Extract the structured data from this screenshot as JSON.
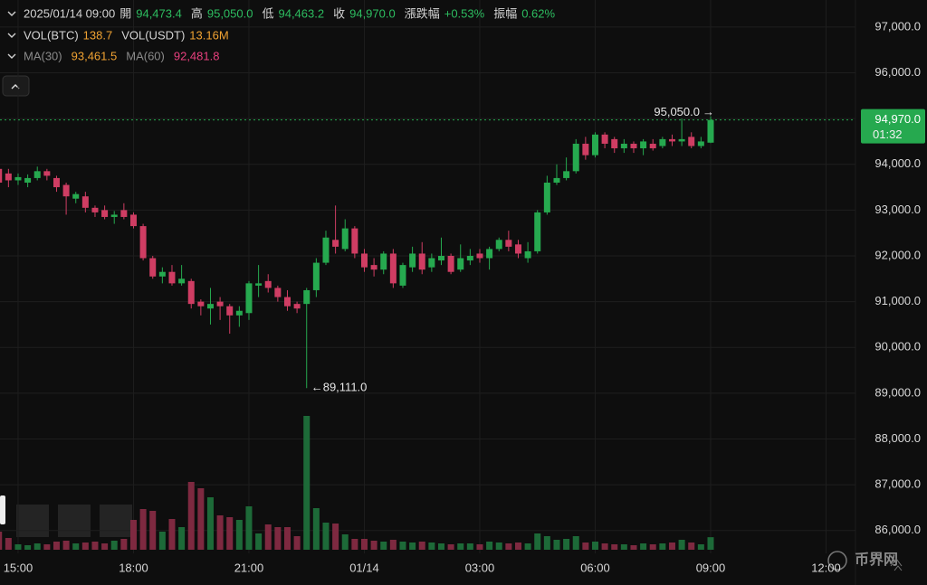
{
  "header": {
    "rows": [
      [
        {
          "text": "2025/01/14 09:00"
        },
        {
          "text": "開"
        },
        {
          "text": "94,473.4",
          "color": "#2dbd60"
        },
        {
          "text": "高"
        },
        {
          "text": "95,050.0",
          "color": "#2dbd60"
        },
        {
          "text": "低"
        },
        {
          "text": "94,463.2",
          "color": "#2dbd60"
        },
        {
          "text": "收"
        },
        {
          "text": "94,970.0",
          "color": "#2dbd60"
        },
        {
          "text": "漲跌幅"
        },
        {
          "text": "+0.53%",
          "color": "#2dbd60"
        },
        {
          "text": "振幅"
        },
        {
          "text": "0.62%",
          "color": "#2dbd60"
        }
      ],
      [
        {
          "text": "VOL(BTC)"
        },
        {
          "text": "138.7",
          "color": "#f0a232"
        },
        {
          "text": "VOL(USDT)"
        },
        {
          "text": "13.16M",
          "color": "#f0a232"
        }
      ],
      [
        {
          "text": "MA(30)",
          "color": "#8a8a8a"
        },
        {
          "text": "93,461.5",
          "color": "#f0a232"
        },
        {
          "text": "MA(60)",
          "color": "#8a8a8a"
        },
        {
          "text": "92,481.8",
          "color": "#e8407e"
        }
      ]
    ]
  },
  "chart_data": {
    "type": "candlestick",
    "up_color": "#26a94f",
    "down_color": "#cf3d63",
    "volume_up_color": "#1d6a38",
    "volume_down_color": "#7e2940",
    "open": [
      93900,
      93800,
      93650,
      93600,
      93700,
      93850,
      93700,
      93550,
      93250,
      93300,
      93050,
      93000,
      92850,
      93000,
      92900,
      92650,
      91950,
      91550,
      91650,
      91400,
      91450,
      91000,
      90850,
      91000,
      90900,
      90700,
      90750,
      91350,
      91450,
      91300,
      91100,
      90950,
      90950,
      91250,
      91850,
      92350,
      92150,
      92600,
      92050,
      91800,
      91700,
      92050,
      91350,
      91750,
      92050,
      91750,
      91900,
      92000,
      91700,
      91900,
      92050,
      91950,
      92150,
      92350,
      92250,
      91950,
      92100,
      92950,
      93600,
      93700,
      93850,
      94450,
      94200,
      94650,
      94550,
      94350,
      94450,
      94350,
      94450,
      94400,
      94550,
      94500,
      94600,
      94400,
      94473.4
    ],
    "high": [
      94000,
      93900,
      93800,
      93780,
      93950,
      93900,
      93750,
      93600,
      93400,
      93400,
      93100,
      93100,
      92980,
      93150,
      92950,
      92700,
      92000,
      91750,
      91800,
      91800,
      91500,
      91050,
      91300,
      91100,
      90950,
      90900,
      91450,
      91800,
      91600,
      91350,
      91250,
      91000,
      91300,
      91950,
      92550,
      93100,
      92800,
      92650,
      92150,
      91950,
      92100,
      92150,
      91850,
      92200,
      92300,
      92050,
      92400,
      92050,
      92250,
      92150,
      92150,
      92200,
      92400,
      92550,
      92350,
      92300,
      93000,
      93750,
      94000,
      94150,
      94550,
      94600,
      94700,
      94700,
      94600,
      94550,
      94500,
      94550,
      94550,
      94600,
      94650,
      95000,
      94700,
      94600,
      95050
    ],
    "low": [
      93200,
      93500,
      93550,
      93500,
      93650,
      93650,
      93400,
      92900,
      93150,
      92950,
      92850,
      92800,
      92700,
      92800,
      92600,
      91900,
      91500,
      91400,
      91350,
      91350,
      90850,
      90700,
      90500,
      90600,
      90300,
      90450,
      90600,
      91100,
      91200,
      91000,
      90800,
      90750,
      89111,
      91100,
      91800,
      92050,
      92100,
      91950,
      91650,
      91550,
      91600,
      91300,
      91300,
      91650,
      91600,
      91650,
      91800,
      91600,
      91650,
      91800,
      91850,
      91700,
      92100,
      92100,
      91950,
      91850,
      92050,
      92900,
      93550,
      93650,
      93800,
      94100,
      94150,
      94350,
      94250,
      94250,
      94250,
      94200,
      94300,
      94350,
      94400,
      94400,
      94350,
      94350,
      94463.2
    ],
    "close": [
      93600,
      93650,
      93720,
      93700,
      93850,
      93750,
      93500,
      93300,
      93350,
      93050,
      92950,
      92850,
      92900,
      92850,
      92650,
      91950,
      91550,
      91650,
      91400,
      91500,
      90950,
      90900,
      90950,
      90900,
      90700,
      90800,
      91400,
      91400,
      91300,
      91100,
      90900,
      90850,
      91250,
      91850,
      92400,
      92200,
      92600,
      92050,
      91750,
      91700,
      92050,
      91400,
      91800,
      92050,
      91700,
      91950,
      92000,
      91650,
      91950,
      92000,
      91950,
      92150,
      92350,
      92200,
      92050,
      92100,
      92950,
      93600,
      93700,
      93850,
      94450,
      94200,
      94650,
      94450,
      94350,
      94450,
      94350,
      94500,
      94350,
      94550,
      94500,
      94550,
      94400,
      94500,
      94970
    ],
    "volume": [
      200,
      130,
      60,
      50,
      70,
      60,
      90,
      100,
      70,
      80,
      90,
      70,
      100,
      120,
      330,
      450,
      430,
      200,
      340,
      250,
      750,
      680,
      580,
      380,
      360,
      330,
      480,
      180,
      280,
      250,
      250,
      150,
      1480,
      460,
      300,
      290,
      170,
      120,
      120,
      100,
      90,
      110,
      90,
      80,
      90,
      80,
      70,
      60,
      70,
      70,
      60,
      90,
      80,
      70,
      80,
      70,
      180,
      150,
      110,
      120,
      150,
      80,
      90,
      70,
      60,
      60,
      50,
      70,
      60,
      70,
      80,
      110,
      80,
      60,
      138.7
    ],
    "xlim": [
      0.12,
      89.06
    ],
    "xticks": [
      {
        "value": 2,
        "label": "15:00"
      },
      {
        "value": 14,
        "label": "18:00"
      },
      {
        "value": 26,
        "label": "21:00"
      },
      {
        "value": 38,
        "label": "01/14"
      },
      {
        "value": 50,
        "label": "03:00"
      },
      {
        "value": 62,
        "label": "06:00"
      },
      {
        "value": 74,
        "label": "09:00"
      },
      {
        "value": 86,
        "label": "12:00"
      }
    ],
    "ylim": [
      85580,
      97590
    ],
    "yticks": [
      {
        "value": 97000,
        "label": "97,000.0"
      },
      {
        "value": 96000,
        "label": "96,000.0"
      },
      {
        "value": 95000,
        "label": "95,000.0"
      },
      {
        "value": 94000,
        "label": "94,000.0"
      },
      {
        "value": 93000,
        "label": "93,000.0"
      },
      {
        "value": 92000,
        "label": "92,000.0"
      },
      {
        "value": 91000,
        "label": "91,000.0"
      },
      {
        "value": 90000,
        "label": "90,000.0"
      },
      {
        "value": 89000,
        "label": "89,000.0"
      },
      {
        "value": 88000,
        "label": "88,000.0"
      },
      {
        "value": 87000,
        "label": "87,000.0"
      },
      {
        "value": 86000,
        "label": "86,000.0"
      }
    ],
    "y2lim": [
      0,
      6080
    ],
    "grid": true,
    "high_label": "95,050.0",
    "low_label": "89,111.0",
    "price_tag": {
      "price": "94,970.0",
      "countdown": "01:32"
    }
  },
  "watermark": "币界网"
}
